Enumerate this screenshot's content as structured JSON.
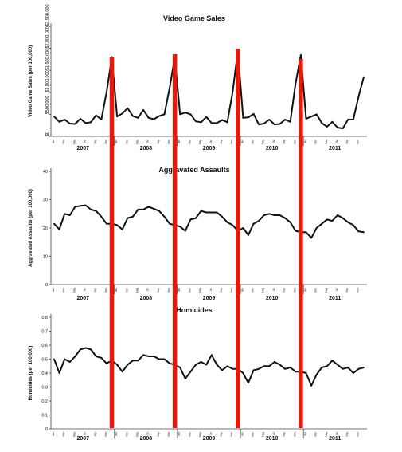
{
  "chart_data": [
    {
      "type": "line",
      "title": "Video Game Sales",
      "ylabel": "Video Game Sales (per 100,000)",
      "ylim": [
        0,
        2500000
      ],
      "yticks": [
        0,
        500000,
        1000000,
        1500000,
        2000000,
        2500000
      ],
      "ytick_labels": [
        "$0",
        "$500,000",
        "$1,000,000",
        "$1,500,000",
        "$2,000,000",
        "$2,500,000"
      ],
      "month_tick_labels": [
        "Jan",
        "Mar",
        "May",
        "Jul",
        "Sep",
        "Nov"
      ],
      "year_labels": [
        "2007",
        "2008",
        "2009",
        "2010",
        "2011"
      ],
      "x": [
        "2007-01",
        "2007-02",
        "2007-03",
        "2007-04",
        "2007-05",
        "2007-06",
        "2007-07",
        "2007-08",
        "2007-09",
        "2007-10",
        "2007-11",
        "2007-12",
        "2008-01",
        "2008-02",
        "2008-03",
        "2008-04",
        "2008-05",
        "2008-06",
        "2008-07",
        "2008-08",
        "2008-09",
        "2008-10",
        "2008-11",
        "2008-12",
        "2009-01",
        "2009-02",
        "2009-03",
        "2009-04",
        "2009-05",
        "2009-06",
        "2009-07",
        "2009-08",
        "2009-09",
        "2009-10",
        "2009-11",
        "2009-12",
        "2010-01",
        "2010-02",
        "2010-03",
        "2010-04",
        "2010-05",
        "2010-06",
        "2010-07",
        "2010-08",
        "2010-09",
        "2010-10",
        "2010-11",
        "2010-12",
        "2011-01",
        "2011-02",
        "2011-03",
        "2011-04",
        "2011-05",
        "2011-06",
        "2011-07",
        "2011-08",
        "2011-09",
        "2011-10",
        "2011-11",
        "2011-12"
      ],
      "values": [
        450000,
        330000,
        380000,
        290000,
        280000,
        400000,
        300000,
        320000,
        480000,
        380000,
        1000000,
        1800000,
        450000,
        520000,
        640000,
        460000,
        420000,
        600000,
        420000,
        390000,
        460000,
        500000,
        1100000,
        1800000,
        500000,
        540000,
        500000,
        340000,
        320000,
        440000,
        300000,
        300000,
        370000,
        320000,
        1000000,
        1950000,
        420000,
        430000,
        510000,
        270000,
        290000,
        380000,
        270000,
        280000,
        380000,
        330000,
        1200000,
        1850000,
        400000,
        450000,
        500000,
        300000,
        220000,
        330000,
        200000,
        180000,
        380000,
        380000,
        900000,
        1350000
      ]
    },
    {
      "type": "line",
      "title": "Aggravated Assaults",
      "ylabel": "Aggravated Assaults (per 100,000)",
      "ylim": [
        0,
        40
      ],
      "yticks": [
        0,
        10,
        20,
        30,
        40
      ],
      "ytick_labels": [
        "0",
        "10",
        "20",
        "30",
        "40"
      ],
      "month_tick_labels": [
        "Jan",
        "Mar",
        "May",
        "Jul",
        "Sep",
        "Nov"
      ],
      "year_labels": [
        "2007",
        "2008",
        "2009",
        "2010",
        "2011"
      ],
      "x": [
        "2007-01",
        "2007-02",
        "2007-03",
        "2007-04",
        "2007-05",
        "2007-06",
        "2007-07",
        "2007-08",
        "2007-09",
        "2007-10",
        "2007-11",
        "2007-12",
        "2008-01",
        "2008-02",
        "2008-03",
        "2008-04",
        "2008-05",
        "2008-06",
        "2008-07",
        "2008-08",
        "2008-09",
        "2008-10",
        "2008-11",
        "2008-12",
        "2009-01",
        "2009-02",
        "2009-03",
        "2009-04",
        "2009-05",
        "2009-06",
        "2009-07",
        "2009-08",
        "2009-09",
        "2009-10",
        "2009-11",
        "2009-12",
        "2010-01",
        "2010-02",
        "2010-03",
        "2010-04",
        "2010-05",
        "2010-06",
        "2010-07",
        "2010-08",
        "2010-09",
        "2010-10",
        "2010-11",
        "2010-12",
        "2011-01",
        "2011-02",
        "2011-03",
        "2011-04",
        "2011-05",
        "2011-06",
        "2011-07",
        "2011-08",
        "2011-09",
        "2011-10",
        "2011-11",
        "2011-12"
      ],
      "values": [
        21.5,
        19.5,
        25,
        24.5,
        27.5,
        27.8,
        28,
        26.5,
        26,
        24,
        21.5,
        21.5,
        21,
        19.5,
        23.5,
        24,
        26.5,
        26.5,
        27.5,
        26.8,
        26,
        24,
        21.5,
        21,
        20.5,
        19,
        23,
        23.5,
        26,
        25.5,
        25.5,
        25.5,
        24,
        22,
        21,
        19,
        20,
        17.5,
        21.5,
        22.5,
        24.5,
        25,
        24.5,
        24.5,
        23.5,
        22,
        19,
        18.5,
        18.5,
        16.5,
        20,
        21.5,
        23,
        22.5,
        24.5,
        23.5,
        22,
        21,
        18.8,
        18.5
      ]
    },
    {
      "type": "line",
      "title": "Homicides",
      "ylabel": "Homicides (per 100,000)",
      "ylim": [
        0,
        0.8
      ],
      "yticks": [
        0,
        0.1,
        0.2,
        0.3,
        0.4,
        0.5,
        0.6,
        0.7,
        0.8
      ],
      "ytick_labels": [
        "0",
        "0.1",
        "0.2",
        "0.3",
        "0.4",
        "0.5",
        "0.6",
        "0.7",
        "0.8"
      ],
      "month_tick_labels": [
        "Jan",
        "Mar",
        "May",
        "Jul",
        "Sep",
        "Nov"
      ],
      "year_labels": [
        "2007",
        "2008",
        "2009",
        "2010",
        "2011"
      ],
      "x": [
        "2007-01",
        "2007-02",
        "2007-03",
        "2007-04",
        "2007-05",
        "2007-06",
        "2007-07",
        "2007-08",
        "2007-09",
        "2007-10",
        "2007-11",
        "2007-12",
        "2008-01",
        "2008-02",
        "2008-03",
        "2008-04",
        "2008-05",
        "2008-06",
        "2008-07",
        "2008-08",
        "2008-09",
        "2008-10",
        "2008-11",
        "2008-12",
        "2009-01",
        "2009-02",
        "2009-03",
        "2009-04",
        "2009-05",
        "2009-06",
        "2009-07",
        "2009-08",
        "2009-09",
        "2009-10",
        "2009-11",
        "2009-12",
        "2010-01",
        "2010-02",
        "2010-03",
        "2010-04",
        "2010-05",
        "2010-06",
        "2010-07",
        "2010-08",
        "2010-09",
        "2010-10",
        "2010-11",
        "2010-12",
        "2011-01",
        "2011-02",
        "2011-03",
        "2011-04",
        "2011-05",
        "2011-06",
        "2011-07",
        "2011-08",
        "2011-09",
        "2011-10",
        "2011-11",
        "2011-12"
      ],
      "values": [
        0.5,
        0.4,
        0.5,
        0.48,
        0.52,
        0.57,
        0.58,
        0.57,
        0.52,
        0.51,
        0.47,
        0.49,
        0.46,
        0.41,
        0.46,
        0.49,
        0.49,
        0.53,
        0.52,
        0.52,
        0.5,
        0.5,
        0.47,
        0.46,
        0.44,
        0.36,
        0.41,
        0.46,
        0.48,
        0.46,
        0.53,
        0.46,
        0.42,
        0.45,
        0.43,
        0.43,
        0.4,
        0.33,
        0.42,
        0.43,
        0.45,
        0.45,
        0.48,
        0.46,
        0.43,
        0.44,
        0.41,
        0.41,
        0.4,
        0.31,
        0.39,
        0.44,
        0.45,
        0.49,
        0.46,
        0.43,
        0.44,
        0.4,
        0.43,
        0.44
      ]
    }
  ],
  "overlay": {
    "marker_color": "#e8190b",
    "marker_months": [
      "2007-12",
      "2008-12",
      "2009-12",
      "2010-12"
    ]
  }
}
